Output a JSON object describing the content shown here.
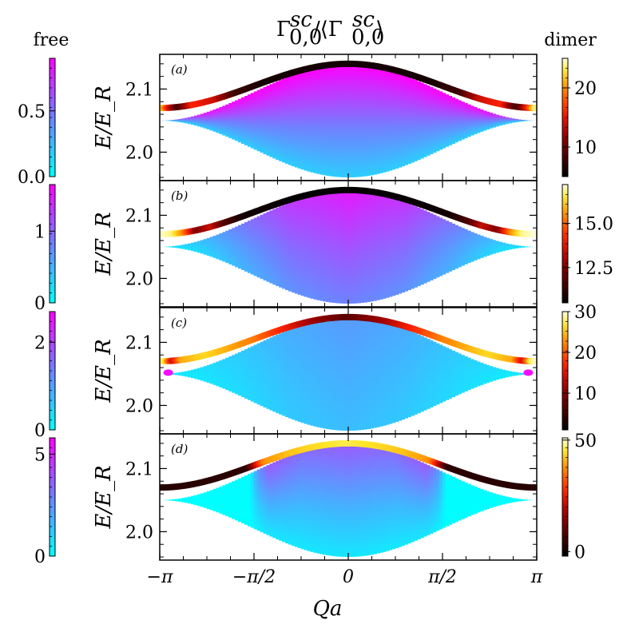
{
  "title": "Γ^sc_0,0 / ⟨Γ^sc_0,0⟩",
  "left_colorbar_label": "free",
  "right_colorbar_label": "dimer",
  "colors": {
    "free_low": "#00ffff",
    "free_high": "#ff00ff",
    "dimer_low": "#000000",
    "dimer_mid": "#ff2000",
    "dimer_high": "#ffffe0",
    "axis": "#000000"
  },
  "chart_data": {
    "type": "heatmap",
    "xlabel": "Qa",
    "ylabel": "E/E_R",
    "xlim": [
      -3.14159,
      3.14159
    ],
    "ylim": [
      1.955,
      2.155
    ],
    "x_ticks": [
      {
        "value": -3.14159,
        "label": "−π"
      },
      {
        "value": -1.5708,
        "label": "−π/2"
      },
      {
        "value": 0,
        "label": "0"
      },
      {
        "value": 1.5708,
        "label": "π/2"
      },
      {
        "value": 3.14159,
        "label": "π"
      }
    ],
    "y_ticks": [
      {
        "value": 2.0,
        "label": "2.0"
      },
      {
        "value": 2.1,
        "label": "2.1"
      }
    ],
    "continuum": {
      "lower_edge_center": 1.96,
      "lower_edge_zone": 2.05,
      "upper_edge_center": 2.14,
      "upper_edge_zone": 2.05
    },
    "dimer_band": {
      "center": 2.14,
      "zone_edge": 2.07
    },
    "panels": [
      {
        "tag": "(a)",
        "free_colorbar": {
          "ticks": [
            {
              "value": 0.0,
              "label": "0.0"
            },
            {
              "value": 0.5,
              "label": "0.5"
            }
          ],
          "range": [
            0,
            0.9
          ]
        },
        "dimer_colorbar": {
          "ticks": [
            {
              "value": 10,
              "label": "10"
            },
            {
              "value": 20,
              "label": "20"
            }
          ],
          "range": [
            5,
            25
          ]
        },
        "continuum_profile": [
          {
            "x": 0.0,
            "v": 0.9
          },
          {
            "x": 0.5,
            "v": 0.9
          },
          {
            "x": 0.75,
            "v": 0.85
          },
          {
            "x": 0.9,
            "v": 0.6
          },
          {
            "x": 1.0,
            "v": 0.3
          }
        ],
        "continuum_vertical_falloff": 0.2,
        "dimer_profile": [
          {
            "x": 0.0,
            "v": 6
          },
          {
            "x": 0.45,
            "v": 6
          },
          {
            "x": 0.6,
            "v": 8
          },
          {
            "x": 0.7,
            "v": 14
          },
          {
            "x": 0.82,
            "v": 16
          },
          {
            "x": 0.9,
            "v": 8
          },
          {
            "x": 0.95,
            "v": 15
          },
          {
            "x": 1.0,
            "v": 25
          }
        ],
        "notch_x": null
      },
      {
        "tag": "(b)",
        "free_colorbar": {
          "ticks": [
            {
              "value": 0,
              "label": "0"
            },
            {
              "value": 1,
              "label": "1"
            }
          ],
          "range": [
            0,
            1.65
          ]
        },
        "dimer_colorbar": {
          "ticks": [
            {
              "value": 12.5,
              "label": "12.5"
            },
            {
              "value": 15.0,
              "label": "15.0"
            }
          ],
          "range": [
            10.5,
            17.2
          ]
        },
        "continuum_profile": [
          {
            "x": 0.0,
            "v": 1.5
          },
          {
            "x": 0.3,
            "v": 1.3
          },
          {
            "x": 0.55,
            "v": 0.9
          },
          {
            "x": 0.8,
            "v": 0.4
          },
          {
            "x": 1.0,
            "v": 0.15
          }
        ],
        "continuum_vertical_falloff": 0.55,
        "dimer_profile": [
          {
            "x": 0.0,
            "v": 10.6
          },
          {
            "x": 0.3,
            "v": 10.6
          },
          {
            "x": 0.55,
            "v": 10.8
          },
          {
            "x": 0.65,
            "v": 11.8
          },
          {
            "x": 0.72,
            "v": 13.5
          },
          {
            "x": 0.8,
            "v": 12.5
          },
          {
            "x": 0.87,
            "v": 15.5
          },
          {
            "x": 0.93,
            "v": 16.8
          },
          {
            "x": 1.0,
            "v": 17.2
          }
        ],
        "notch_x": null
      },
      {
        "tag": "(c)",
        "free_colorbar": {
          "ticks": [
            {
              "value": 0,
              "label": "0"
            },
            {
              "value": 2,
              "label": "2"
            }
          ],
          "range": [
            0,
            2.7
          ]
        },
        "dimer_colorbar": {
          "ticks": [
            {
              "value": 10,
              "label": "10"
            },
            {
              "value": 20,
              "label": "20"
            },
            {
              "value": 30,
              "label": "30"
            }
          ],
          "range": [
            1,
            30
          ]
        },
        "continuum_profile": [
          {
            "x": 0.0,
            "v": 1.1
          },
          {
            "x": 0.3,
            "v": 0.9
          },
          {
            "x": 0.6,
            "v": 0.55
          },
          {
            "x": 0.85,
            "v": 0.3
          },
          {
            "x": 0.93,
            "v": 0.35
          },
          {
            "x": 1.0,
            "v": 2.0
          }
        ],
        "continuum_vertical_falloff": 0.65,
        "dimer_profile": [
          {
            "x": 0.0,
            "v": 7
          },
          {
            "x": 0.2,
            "v": 12
          },
          {
            "x": 0.5,
            "v": 22
          },
          {
            "x": 0.75,
            "v": 26
          },
          {
            "x": 0.88,
            "v": 24
          },
          {
            "x": 0.93,
            "v": 14
          },
          {
            "x": 0.97,
            "v": 27
          },
          {
            "x": 1.0,
            "v": 30
          }
        ],
        "notch_x": 0.955
      },
      {
        "tag": "(d)",
        "free_colorbar": {
          "ticks": [
            {
              "value": 0,
              "label": "0"
            },
            {
              "value": 5,
              "label": "5"
            }
          ],
          "range": [
            0,
            5.8
          ]
        },
        "dimer_colorbar": {
          "ticks": [
            {
              "value": 0,
              "label": "0"
            },
            {
              "value": 50,
              "label": "50"
            }
          ],
          "range": [
            -2,
            51
          ]
        },
        "continuum_profile": [
          {
            "x": 0.0,
            "v": 3.8
          },
          {
            "x": 0.25,
            "v": 3.4
          },
          {
            "x": 0.42,
            "v": 3.8
          },
          {
            "x": 0.48,
            "v": 2.5
          },
          {
            "x": 0.52,
            "v": 0.1
          },
          {
            "x": 1.0,
            "v": 0.0
          }
        ],
        "continuum_vertical_falloff": 0.15,
        "dimer_profile": [
          {
            "x": 0.0,
            "v": 46
          },
          {
            "x": 0.3,
            "v": 42
          },
          {
            "x": 0.44,
            "v": 38
          },
          {
            "x": 0.49,
            "v": 20
          },
          {
            "x": 0.53,
            "v": 4
          },
          {
            "x": 0.6,
            "v": 3
          },
          {
            "x": 1.0,
            "v": 3
          }
        ],
        "notch_x": null
      }
    ]
  }
}
